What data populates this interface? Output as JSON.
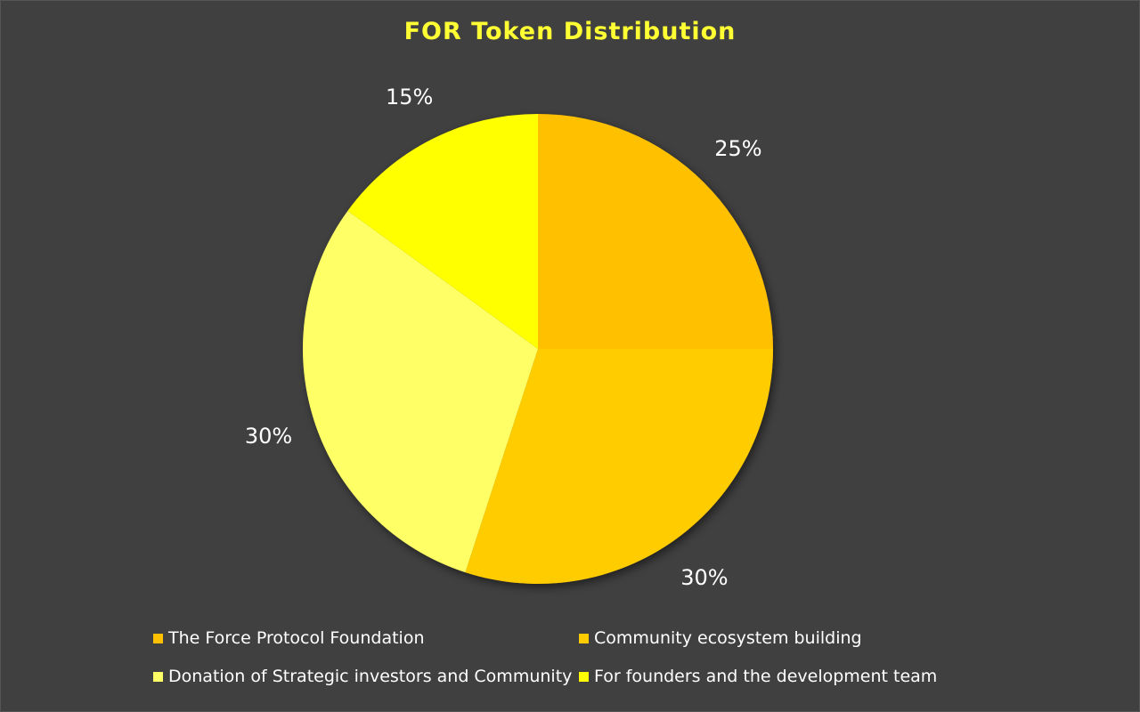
{
  "chart_data": {
    "type": "pie",
    "title": "FOR Token Distribution",
    "categories": [
      "The Force Protocol Foundation",
      "Community ecosystem building",
      "Donation of Strategic investors and Community",
      "For founders and the development team"
    ],
    "values": [
      25,
      30,
      30,
      15
    ],
    "labels": [
      "25%",
      "30%",
      "30%",
      "15%"
    ],
    "colors": [
      "#FFC000",
      "#FFCC00",
      "#FFFF66",
      "#FFFF00"
    ],
    "legend_position": "bottom"
  }
}
